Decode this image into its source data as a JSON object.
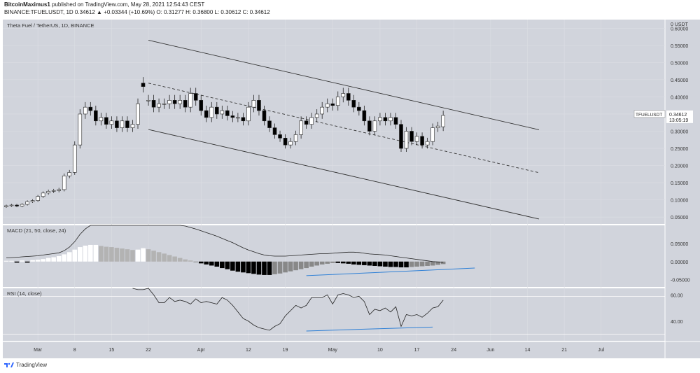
{
  "header": {
    "line1_author": "BitcoinMaximus1",
    "line1_rest": " published on TradingView.com, May 28, 2021 12:54:43 CEST",
    "line2": "BINANCE:TFUELUSDT, 1D  0.34612  ▲ +0.03344 (+10.69%)  O: 0.31277  H: 0.36800  L: 0.30612  C: 0.34612"
  },
  "footer": {
    "brand": "TradingView"
  },
  "colors": {
    "panel_bg": "#d1d4dc",
    "candle_up": "#ffffff",
    "candle_down": "#000000",
    "channel_line": "#333333",
    "divergence_line": "#2f80d6",
    "hist_light": "#b3b3b3",
    "hist_dark": "#333333"
  },
  "chart_data": {
    "type": "candlestick",
    "title": "Theta Fuel / TetherUS, 1D, BINANCE",
    "symbol": "TFUELUSDT",
    "last_price": "0.34612",
    "countdown": "13:05:19",
    "x_ticks": [
      "Mar",
      "8",
      "15",
      "22",
      "Apr",
      "12",
      "19",
      "May",
      "10",
      "17",
      "24",
      "Jun",
      "14",
      "21",
      "Jul"
    ],
    "price_axis": {
      "ylim": [
        0.03,
        0.625
      ],
      "ticks": [
        "0.60000",
        "0.55000",
        "0.50000",
        "0.45000",
        "0.40000",
        "0.35000",
        "0.30000",
        "0.25000",
        "0.20000",
        "0.15000",
        "0.10000",
        "0.05000"
      ],
      "top_tick": "0 USDT"
    },
    "candles_close": [
      0.083,
      0.085,
      0.082,
      0.087,
      0.095,
      0.098,
      0.11,
      0.12,
      0.125,
      0.127,
      0.13,
      0.17,
      0.18,
      0.26,
      0.35,
      0.37,
      0.36,
      0.33,
      0.34,
      0.32,
      0.33,
      0.31,
      0.33,
      0.31,
      0.32,
      0.38,
      0.43,
      0.39,
      0.37,
      0.38,
      0.38,
      0.39,
      0.38,
      0.39,
      0.37,
      0.41,
      0.39,
      0.36,
      0.34,
      0.37,
      0.35,
      0.36,
      0.345,
      0.34,
      0.34,
      0.33,
      0.37,
      0.39,
      0.36,
      0.33,
      0.31,
      0.29,
      0.28,
      0.26,
      0.27,
      0.29,
      0.33,
      0.32,
      0.34,
      0.35,
      0.37,
      0.38,
      0.375,
      0.4,
      0.41,
      0.39,
      0.37,
      0.36,
      0.33,
      0.3,
      0.33,
      0.34,
      0.33,
      0.34,
      0.32,
      0.25,
      0.3,
      0.27,
      0.285,
      0.26,
      0.27,
      0.31,
      0.315,
      0.346
    ],
    "candles_open": [
      0.08,
      0.083,
      0.085,
      0.082,
      0.087,
      0.095,
      0.098,
      0.11,
      0.12,
      0.125,
      0.127,
      0.13,
      0.17,
      0.18,
      0.26,
      0.35,
      0.37,
      0.36,
      0.33,
      0.34,
      0.32,
      0.33,
      0.31,
      0.33,
      0.31,
      0.32,
      0.44,
      0.39,
      0.39,
      0.37,
      0.38,
      0.38,
      0.39,
      0.38,
      0.39,
      0.37,
      0.41,
      0.39,
      0.36,
      0.34,
      0.37,
      0.35,
      0.36,
      0.345,
      0.34,
      0.34,
      0.33,
      0.37,
      0.39,
      0.36,
      0.33,
      0.31,
      0.29,
      0.28,
      0.26,
      0.27,
      0.29,
      0.33,
      0.32,
      0.34,
      0.35,
      0.37,
      0.38,
      0.375,
      0.4,
      0.41,
      0.39,
      0.37,
      0.36,
      0.33,
      0.3,
      0.33,
      0.34,
      0.33,
      0.34,
      0.32,
      0.25,
      0.3,
      0.27,
      0.285,
      0.26,
      0.27,
      0.31,
      0.313
    ],
    "macd": {
      "label": "MACD (21, 50, close, 24)",
      "ticks": [
        "0.05000",
        "0.00000",
        "-0.05000"
      ],
      "ylim": [
        -0.07,
        0.1
      ],
      "histogram": [
        0.002,
        0.002,
        -0.003,
        0.003,
        -0.003,
        0.004,
        0.005,
        0.007,
        0.01,
        0.012,
        0.015,
        0.02,
        0.026,
        0.033,
        0.04,
        0.044,
        0.046,
        0.046,
        0.043,
        0.041,
        0.04,
        0.038,
        0.036,
        0.034,
        0.032,
        0.033,
        0.037,
        0.034,
        0.03,
        0.026,
        0.022,
        0.018,
        0.014,
        0.01,
        0.006,
        0.003,
        -0.002,
        -0.005,
        -0.008,
        -0.011,
        -0.014,
        -0.018,
        -0.021,
        -0.025,
        -0.028,
        -0.03,
        -0.032,
        -0.034,
        -0.036,
        -0.037,
        -0.037,
        -0.035,
        -0.033,
        -0.03,
        -0.027,
        -0.024,
        -0.021,
        -0.018,
        -0.014,
        -0.011,
        -0.008,
        -0.006,
        -0.004,
        -0.004,
        -0.005,
        -0.006,
        -0.008,
        -0.009,
        -0.01,
        -0.011,
        -0.012,
        -0.013,
        -0.014,
        -0.015,
        -0.015,
        -0.016,
        -0.016,
        -0.015,
        -0.014,
        -0.013,
        -0.012,
        -0.011,
        -0.009,
        -0.007
      ],
      "macd_line": [
        0.01,
        0.011,
        0.012,
        0.013,
        0.014,
        0.015,
        0.016,
        0.018,
        0.02,
        0.022,
        0.024,
        0.03,
        0.04,
        0.055,
        0.075,
        0.09,
        0.1,
        0.105,
        0.11,
        0.115,
        0.118,
        0.12,
        0.12,
        0.119,
        0.118,
        0.118,
        0.12,
        0.119,
        0.117,
        0.115,
        0.113,
        0.11,
        0.106,
        0.102,
        0.098,
        0.094,
        0.09,
        0.085,
        0.08,
        0.075,
        0.07,
        0.064,
        0.058,
        0.052,
        0.045,
        0.038,
        0.032,
        0.027,
        0.022,
        0.018,
        0.016,
        0.015,
        0.015,
        0.015,
        0.016,
        0.017,
        0.018,
        0.019,
        0.02,
        0.021,
        0.022,
        0.022,
        0.023,
        0.024,
        0.025,
        0.026,
        0.026,
        0.025,
        0.023,
        0.021,
        0.02,
        0.019,
        0.018,
        0.016,
        0.014,
        0.012,
        0.01,
        0.008,
        0.006,
        0.004,
        0.002,
        0.0,
        -0.001,
        -0.002
      ]
    },
    "rsi": {
      "label": "RSI (14, close)",
      "ticks": [
        "60.00",
        "40.00"
      ],
      "ylim": [
        25,
        65
      ],
      "values": [
        null,
        null,
        null,
        null,
        null,
        null,
        null,
        null,
        null,
        null,
        null,
        null,
        null,
        null,
        null,
        null,
        null,
        null,
        null,
        null,
        null,
        null,
        null,
        null,
        65,
        64,
        64,
        66,
        60,
        54,
        54,
        58,
        55,
        56,
        55,
        53,
        57,
        54,
        55,
        54,
        53,
        58,
        56,
        52,
        47,
        42,
        40,
        37,
        35,
        34,
        33,
        36,
        38,
        44,
        48,
        52,
        50,
        52,
        58,
        58,
        58,
        60,
        53,
        60,
        61,
        60,
        58,
        59,
        55,
        45,
        49,
        48,
        50,
        47,
        51,
        36,
        45,
        44,
        45,
        43,
        46,
        50,
        51,
        56
      ],
      "top_line": 60,
      "bottom_line": 30
    },
    "annotations": {
      "channel": "descending parallel channel",
      "macd_divergence": "bullish",
      "rsi_divergence": "bullish"
    }
  }
}
